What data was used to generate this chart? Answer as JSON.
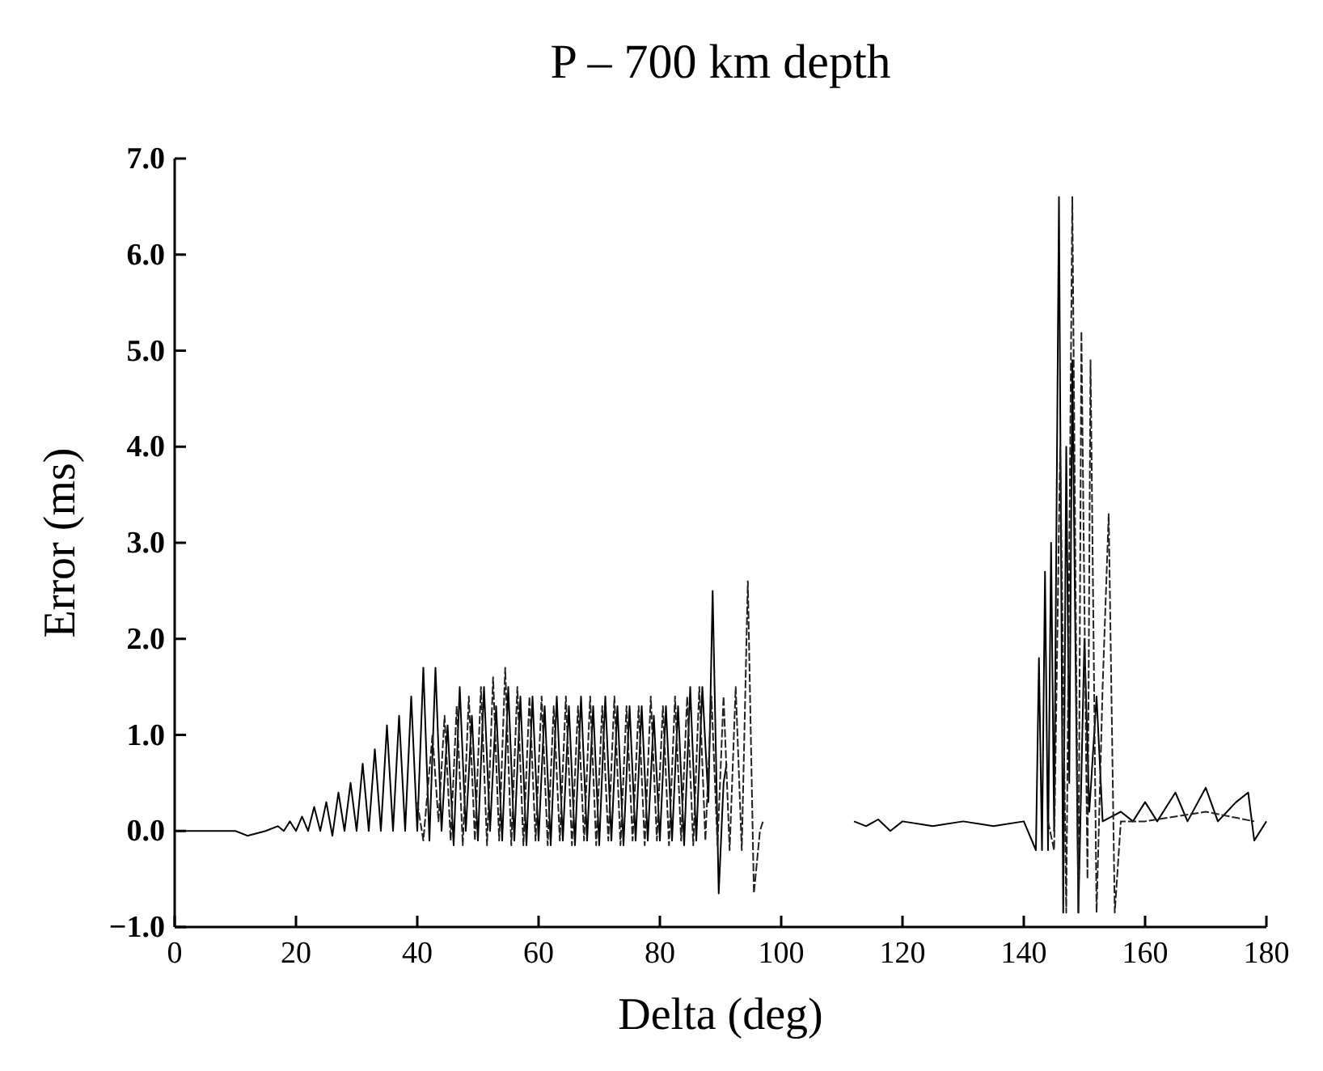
{
  "chart_data": {
    "type": "line",
    "title": "P – 700 km depth",
    "xlabel": "Delta (deg)",
    "ylabel": "Error (ms)",
    "xlim": [
      0,
      180
    ],
    "ylim": [
      -1,
      7
    ],
    "xticks": [
      0,
      20,
      40,
      60,
      80,
      100,
      120,
      140,
      160,
      180
    ],
    "yticks": [
      {
        "value": -1,
        "label": "−1.0"
      },
      {
        "value": 0,
        "label": "0.0"
      },
      {
        "value": 1,
        "label": "1.0"
      },
      {
        "value": 2,
        "label": "2.0"
      },
      {
        "value": 3,
        "label": "3.0"
      },
      {
        "value": 4,
        "label": "4.0"
      },
      {
        "value": 5,
        "label": "5.0"
      },
      {
        "value": 6,
        "label": "6.0"
      },
      {
        "value": 7,
        "label": "7.0"
      }
    ],
    "grid": false,
    "series": [
      {
        "color": "#000000",
        "line_style": "solid",
        "x": [
          0,
          10,
          12,
          15,
          17,
          18,
          19,
          20,
          21,
          22,
          23,
          24,
          25,
          26,
          27,
          28,
          29,
          30,
          31,
          32,
          33,
          34,
          35,
          36,
          37,
          38,
          39,
          40,
          41,
          42,
          43,
          44,
          45,
          46,
          47,
          48,
          49,
          50,
          51,
          52,
          53,
          54,
          55,
          56,
          57,
          58,
          59,
          60,
          61,
          62,
          63,
          64,
          65,
          66,
          67,
          68,
          69,
          70,
          71,
          72,
          73,
          74,
          75,
          76,
          77,
          78,
          79,
          80,
          81,
          82,
          83,
          84,
          85,
          86,
          87,
          88,
          88.7,
          89.7,
          90.5,
          91,
          100,
          112,
          114,
          116,
          118,
          120,
          125,
          130,
          135,
          140,
          142,
          142.5,
          143,
          143.5,
          144,
          144.5,
          145,
          145.8,
          146.5,
          147,
          147.5,
          148,
          149,
          150,
          150.8,
          152,
          153,
          156,
          158,
          160,
          162,
          165,
          167,
          170,
          172,
          175,
          177,
          178,
          180
        ],
        "values": [
          0,
          0,
          -0.05,
          0,
          0.05,
          0,
          0.1,
          0,
          0.15,
          0,
          0.25,
          0,
          0.3,
          -0.05,
          0.4,
          0,
          0.5,
          0,
          0.7,
          0,
          0.85,
          0,
          1.1,
          0,
          1.2,
          0,
          1.4,
          0,
          1.7,
          -0.1,
          1.7,
          0,
          1.1,
          -0.15,
          1.5,
          0,
          1.2,
          -0.1,
          1.5,
          0,
          1.3,
          -0.1,
          1.5,
          -0.1,
          1.4,
          -0.15,
          1.4,
          -0.1,
          1.3,
          -0.15,
          1.4,
          -0.1,
          1.3,
          -0.15,
          1.4,
          -0.1,
          1.3,
          -0.15,
          1.4,
          -0.1,
          1.3,
          -0.15,
          1.3,
          -0.1,
          1.3,
          -0.1,
          1.2,
          -0.1,
          1.3,
          -0.1,
          1.3,
          -0.15,
          1.5,
          -0.1,
          1.5,
          0.3,
          2.5,
          -0.65,
          0.5,
          0.7,
          null,
          0.1,
          0.05,
          0.12,
          0,
          0.1,
          0.05,
          0.1,
          0.05,
          0.1,
          -0.2,
          1.8,
          -0.2,
          2.7,
          -0.2,
          3,
          0,
          6.6,
          -0.85,
          4,
          0.5,
          4.9,
          -0.85,
          2,
          0.2,
          1.4,
          0.1,
          0.2,
          0.1,
          0.3,
          0.1,
          0.4,
          0.1,
          0.45,
          0.1,
          0.3,
          0.4,
          -0.1,
          0.1
        ]
      },
      {
        "color": "#222222",
        "line_style": "dashed",
        "x": [
          40,
          41,
          42.5,
          43.5,
          44.5,
          45.5,
          46.5,
          47.5,
          48.5,
          49.5,
          50.5,
          51.5,
          52.5,
          53.5,
          54.5,
          55.5,
          56.5,
          57.5,
          58.5,
          59.5,
          60.5,
          61.5,
          62.5,
          63.5,
          64.5,
          65.5,
          66.5,
          67.5,
          68.5,
          69.5,
          70.5,
          71.5,
          72.5,
          73.5,
          74.5,
          75.5,
          76.5,
          77.5,
          78.5,
          79.5,
          80.5,
          81.5,
          82.5,
          83.5,
          84.5,
          85.5,
          86.5,
          87.5,
          88.5,
          89.5,
          90.5,
          91.5,
          92.5,
          93.5,
          94.5,
          95.5,
          96.5,
          97,
          105,
          144,
          145,
          146,
          147,
          148,
          149,
          149.5,
          150.5,
          151,
          152,
          153,
          154,
          155,
          156,
          160,
          170,
          178
        ],
        "values": [
          0.3,
          -0.1,
          1,
          0.1,
          1.2,
          -0.1,
          1.3,
          -0.15,
          1.4,
          -0.1,
          1.5,
          -0.15,
          1.6,
          -0.1,
          1.7,
          -0.15,
          1.5,
          -0.15,
          1.4,
          -0.1,
          1.4,
          -0.15,
          1.3,
          -0.1,
          1.4,
          -0.15,
          1.3,
          -0.1,
          1.4,
          -0.15,
          1.3,
          -0.1,
          1.4,
          -0.15,
          1.3,
          -0.1,
          1.3,
          -0.15,
          1.4,
          -0.1,
          1.3,
          -0.15,
          1.4,
          -0.1,
          1.4,
          -0.15,
          1.5,
          -0.1,
          1.4,
          -0.15,
          1.4,
          -0.2,
          1.5,
          -0.2,
          2.6,
          -0.65,
          0,
          0.1,
          null,
          0.1,
          -0.2,
          4,
          -0.85,
          6.6,
          -0.85,
          5.2,
          -0.5,
          4.9,
          -0.85,
          1.5,
          3.3,
          -0.85,
          0.1,
          0.1,
          0.2,
          0.1
        ]
      }
    ]
  }
}
